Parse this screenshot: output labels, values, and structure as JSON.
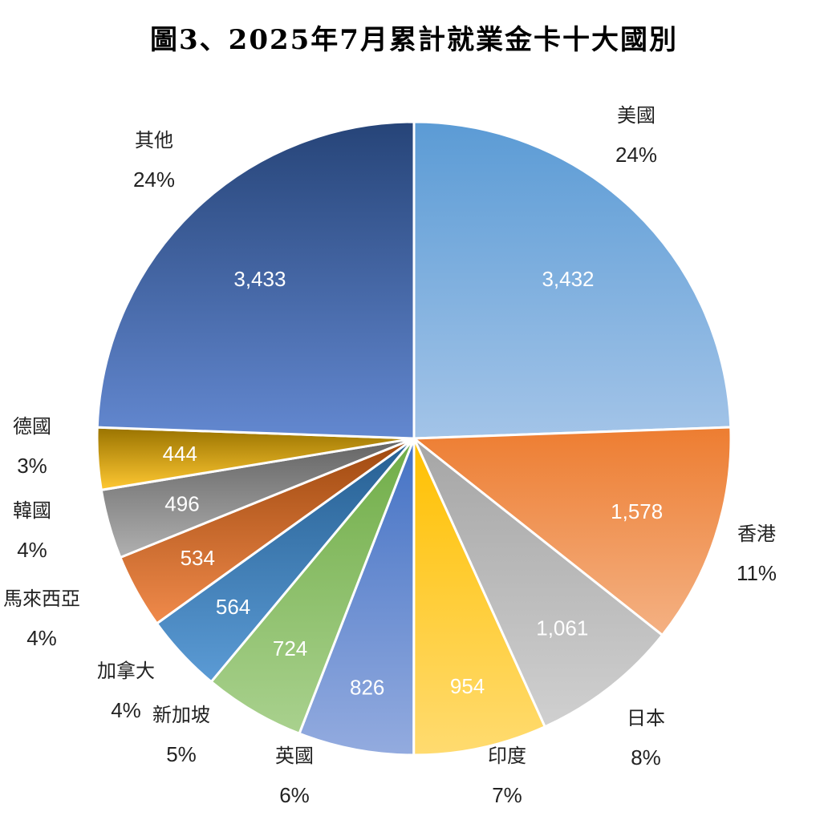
{
  "chart_data": {
    "type": "pie",
    "title": "圖3、2025年7月累計就業金卡十大國別",
    "start": "top",
    "direction": "clockwise",
    "slices": [
      {
        "label": "美國",
        "value": 3432,
        "value_text": "3,432",
        "percent": "24%",
        "color_dark": "#5b9bd5",
        "color_light": "#a3c4e8"
      },
      {
        "label": "香港",
        "value": 1578,
        "value_text": "1,578",
        "percent": "11%",
        "color_dark": "#ed7d31",
        "color_light": "#f4b183"
      },
      {
        "label": "日本",
        "value": 1061,
        "value_text": "1,061",
        "percent": "8%",
        "color_dark": "#a5a5a5",
        "color_light": "#d0d0d0"
      },
      {
        "label": "印度",
        "value": 954,
        "value_text": "954",
        "percent": "7%",
        "color_dark": "#ffc000",
        "color_light": "#ffdb70"
      },
      {
        "label": "英國",
        "value": 826,
        "value_text": "826",
        "percent": "6%",
        "color_dark": "#4472c4",
        "color_light": "#93abdf"
      },
      {
        "label": "新加坡",
        "value": 724,
        "value_text": "724",
        "percent": "5%",
        "color_dark": "#70ad47",
        "color_light": "#a9d18e"
      },
      {
        "label": "加拿大",
        "value": 564,
        "value_text": "564",
        "percent": "4%",
        "color_dark": "#255e91",
        "color_light": "#5b9bd5"
      },
      {
        "label": "馬來西亞",
        "value": 534,
        "value_text": "534",
        "percent": "4%",
        "color_dark": "#9e480e",
        "color_light": "#f08a4b"
      },
      {
        "label": "韓國",
        "value": 496,
        "value_text": "496",
        "percent": "4%",
        "color_dark": "#636363",
        "color_light": "#b0b0b0"
      },
      {
        "label": "德國",
        "value": 444,
        "value_text": "444",
        "percent": "3%",
        "color_dark": "#997300",
        "color_light": "#ffc832"
      },
      {
        "label": "其他",
        "value": 3433,
        "value_text": "3,433",
        "percent": "24%",
        "color_dark": "#264478",
        "color_light": "#6388d0"
      }
    ]
  }
}
